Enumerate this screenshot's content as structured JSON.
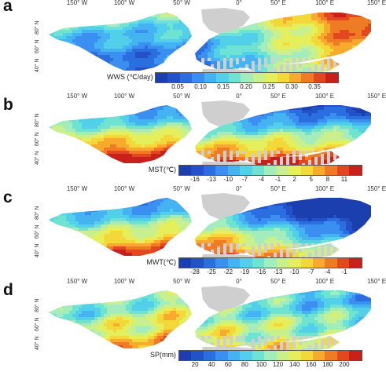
{
  "lon_labels": [
    "150° W",
    "100° W",
    "50° W",
    "0°",
    "50° E",
    "100° E",
    "150° E"
  ],
  "lat_labels": [
    "40° N",
    "60° N",
    "80° N"
  ],
  "colors": {
    "land_no_data": "#cfcfcf",
    "ocean": "#ffffff"
  },
  "panels": [
    {
      "letter": "a",
      "variable": "WWS",
      "legend_title": "WWS (℃/day)",
      "tick_labels": [
        "0.05",
        "0.10",
        "0.15",
        "0.20",
        "0.25",
        "0.30",
        "0.35"
      ],
      "palette": [
        "#1b3fae",
        "#2352c8",
        "#2b6ee0",
        "#3a8ff0",
        "#45b3f2",
        "#52d0ea",
        "#6fe3d2",
        "#a3ecbb",
        "#c9f08f",
        "#e5ef5c",
        "#f3d83a",
        "#f6ab2c",
        "#ef7b24",
        "#e2481e",
        "#c8201a"
      ],
      "pattern": "wws"
    },
    {
      "letter": "b",
      "variable": "MST",
      "legend_title": "MST(℃)",
      "tick_labels": [
        "-16",
        "-13",
        "-10",
        "-7",
        "-4",
        "-1",
        "2",
        "5",
        "8",
        "11"
      ],
      "palette": [
        "#1b3fae",
        "#2352c8",
        "#2b6ee0",
        "#3a8ff0",
        "#45b3f2",
        "#52d0ea",
        "#6fe3d2",
        "#a3ecbb",
        "#c9f08f",
        "#e5ef5c",
        "#f3d83a",
        "#f6ab2c",
        "#ef7b24",
        "#e2481e",
        "#c8201a"
      ],
      "pattern": "mst"
    },
    {
      "letter": "c",
      "variable": "MWT",
      "legend_title": "MWT(℃)",
      "tick_labels": [
        "-28",
        "-25",
        "-22",
        "-19",
        "-16",
        "-13",
        "-10",
        "-7",
        "-4",
        "-1"
      ],
      "palette": [
        "#1b3fae",
        "#2352c8",
        "#2b6ee0",
        "#3a8ff0",
        "#45b3f2",
        "#52d0ea",
        "#6fe3d2",
        "#a3ecbb",
        "#c9f08f",
        "#e5ef5c",
        "#f3d83a",
        "#f6ab2c",
        "#ef7b24",
        "#e2481e",
        "#c8201a"
      ],
      "pattern": "mwt"
    },
    {
      "letter": "d",
      "variable": "SP",
      "legend_title": "SP(mm)",
      "tick_labels": [
        "20",
        "40",
        "60",
        "80",
        "100",
        "120",
        "140",
        "160",
        "180",
        "200"
      ],
      "palette": [
        "#1b3fae",
        "#2352c8",
        "#2b6ee0",
        "#3a8ff0",
        "#45b3f2",
        "#52d0ea",
        "#6fe3d2",
        "#a3ecbb",
        "#c9f08f",
        "#e5ef5c",
        "#f3d83a",
        "#f6ab2c",
        "#ef7b24",
        "#e2481e",
        "#c8201a"
      ],
      "pattern": "sp"
    }
  ]
}
